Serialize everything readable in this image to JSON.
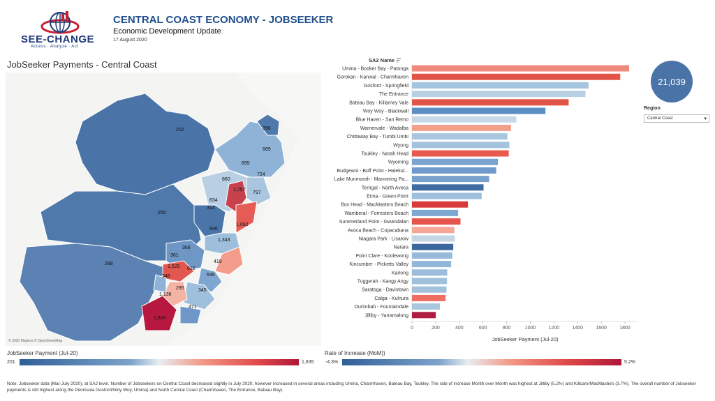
{
  "header": {
    "logo_name": "SEE-CHANGE",
    "logo_tagline": "Access · Analyze · Act",
    "title": "CENTRAL COAST ECONOMY - JOBSEEKER",
    "subtitle": "Economic Development Update",
    "date": "17 August 2020"
  },
  "map": {
    "title": "JobSeeker Payments - Central Coast",
    "credit": "© 2020 Mapbox © OpenStreetMap",
    "labels": [
      "202",
      "396",
      "669",
      "895",
      "724",
      "860",
      "1,757",
      "797",
      "834",
      "314",
      "255",
      "1,092",
      "846",
      "1,343",
      "368",
      "361",
      "1,525",
      "612",
      "419",
      "348",
      "646",
      "288",
      "295",
      "345",
      "1,136",
      "471",
      "1,824"
    ]
  },
  "kpi": {
    "value": "21,039"
  },
  "filter": {
    "label": "Region",
    "value": "Central Coast"
  },
  "colors": {
    "low": "#2f5f98",
    "mid": "#d9e3ec",
    "high": "#b0173a",
    "kpi": "#4a73a8"
  },
  "chart_data": {
    "type": "bar",
    "orientation": "horizontal",
    "category_header": "SA2 Name",
    "xlabel": "JobSeeker Payment  (Jul-20)",
    "xlim": [
      0,
      1900
    ],
    "xticks": [
      0,
      200,
      400,
      600,
      800,
      1000,
      1200,
      1400,
      1600,
      1800
    ],
    "categories": [
      "Umina - Booker Bay - Patonga",
      "Gorokan - Kanwal - Charmhaven",
      "Gosford - Springfield",
      "The Entrance",
      "Bateau Bay - Killarney Vale",
      "Woy Woy - Blackwall",
      "Blue Haven - San Remo",
      "Warnervale - Wadalba",
      "Chittaway Bay - Tumbi Umbi",
      "Wyong",
      "Toukley - Norah Head",
      "Wyoming",
      "Budgewoi - Buff Point - Halekul...",
      "Lake Munmorah - Mannering Pa...",
      "Terrigal - North Avoca",
      "Erina - Green Point",
      "Box Head - MacMasters Beach",
      "Wamberal - Forresters Beach",
      "Summerland Point - Gwandalan",
      "Avoca Beach - Copacabana",
      "Niagara Park - Lisarow",
      "Narara",
      "Point Clare - Koolewong",
      "Kincumber - Picketts Valley",
      "Kariong",
      "Tuggerah - Kangy Angy",
      "Saratoga - Davistown",
      "Calga - Kulnura",
      "Ourimbah - Fountaindale",
      "Jilliby - Yarramalong"
    ],
    "values": [
      1835,
      1760,
      1492,
      1466,
      1324,
      1128,
      882,
      837,
      806,
      823,
      818,
      726,
      712,
      652,
      605,
      589,
      473,
      390,
      410,
      358,
      362,
      349,
      341,
      331,
      298,
      296,
      292,
      284,
      236,
      201
    ],
    "colors": [
      "#f08a7c",
      "#e35448",
      "#a4c4df",
      "#b6cfe3",
      "#e35448",
      "#5d8ec3",
      "#c7d8e6",
      "#f3a08b",
      "#a9c6df",
      "#a4c2dd",
      "#e85a4e",
      "#7aa4cf",
      "#6f9acb",
      "#79a2cf",
      "#3f6da3",
      "#9dbfdc",
      "#d93b3b",
      "#7ea7d2",
      "#e5544a",
      "#f7a595",
      "#c4d5e4",
      "#3b679e",
      "#97badb",
      "#91b6d8",
      "#9bbcda",
      "#a0c0dc",
      "#a0c0dc",
      "#ee6f61",
      "#a8c7df",
      "#b01d44"
    ]
  },
  "legend_payment": {
    "title": "JobSeeker Payment  (Jul-20)",
    "min": "201",
    "max": "1,835"
  },
  "legend_rate": {
    "title": "Rate of Increase (MoM))",
    "min": "-4.3%",
    "max": "5.2%"
  },
  "note": "Note: Jobseeker data (Mar-July 2020), at SA2 level. Number of Jobseekers on Central Coast decreased slightly in July 2020, however increased in several areas including Umina, Charmhaven, Bateau Bay, Toukley. The rate of increase Month over Month was highest at Jilliby (5.2%) and Killcare/MacMasters (3.7%). The overall number of Jobseeker payments is still highest along the Peninsula Gosford/Woy Woy, Umina) and North Central Coast (Charmhaven, The Entrance, Bateau Bay)."
}
